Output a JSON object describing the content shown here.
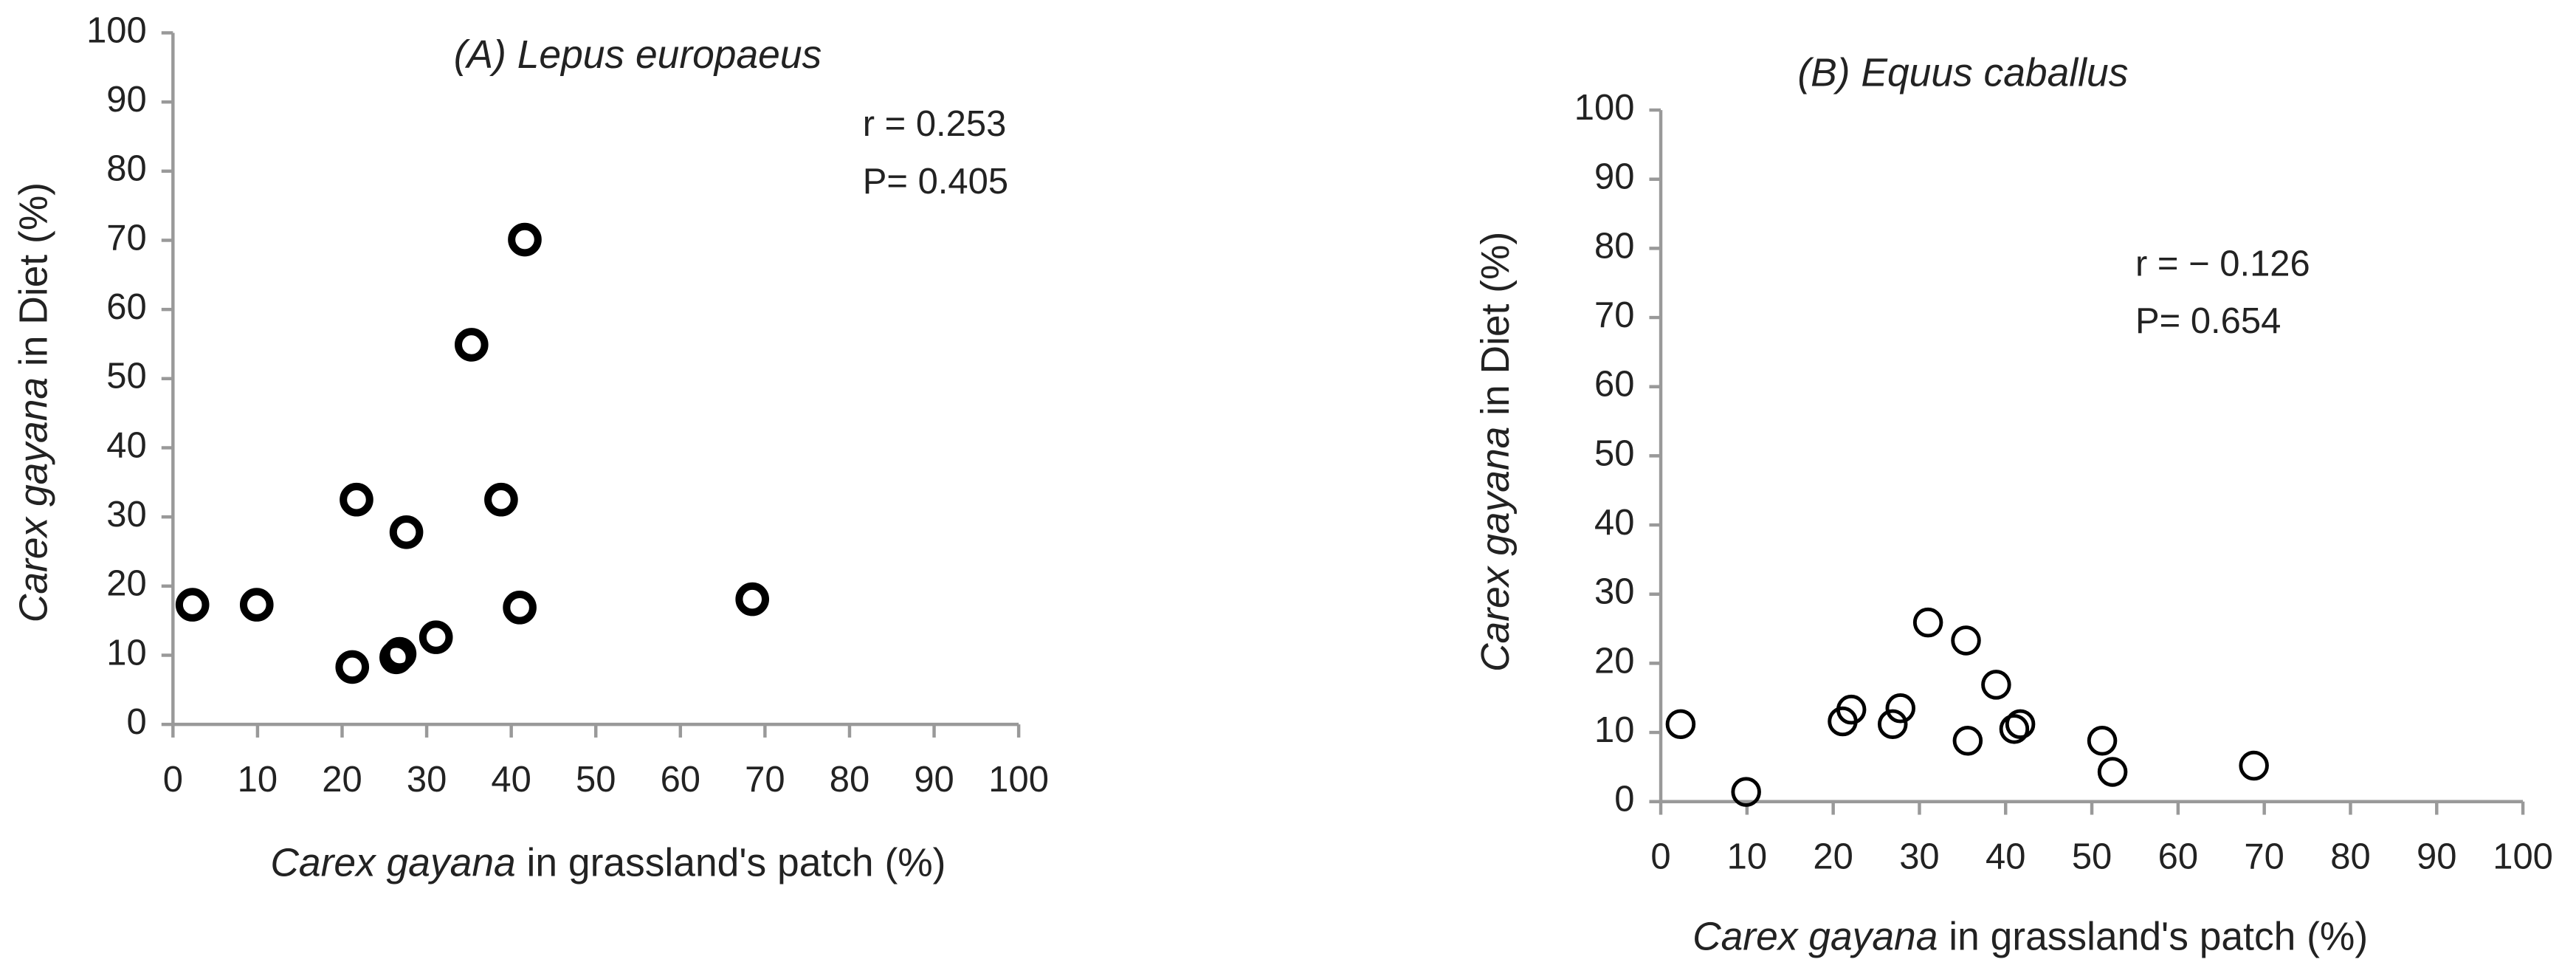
{
  "chart_data": [
    {
      "type": "scatter",
      "title": "(A) Lepus europaeus",
      "xlabel": [
        {
          "text": "Carex gayana",
          "italic": true
        },
        {
          "text": " in  grassland's patch (%)",
          "italic": false
        }
      ],
      "ylabel": [
        {
          "text": "Carex gayana",
          "italic": true
        },
        {
          "text": " in Diet (%)",
          "italic": false
        }
      ],
      "annotations": [
        "r = 0.253",
        "P= 0.405"
      ],
      "xlim": [
        0,
        100
      ],
      "ylim": [
        0,
        100
      ],
      "xticks": [
        0,
        10,
        20,
        30,
        40,
        50,
        60,
        70,
        80,
        90,
        100
      ],
      "yticks": [
        0,
        10,
        20,
        30,
        40,
        50,
        60,
        70,
        80,
        90,
        100
      ],
      "grid": false,
      "marker_color": "#000000",
      "marker_stroke_width": 4.5,
      "x": [
        2.3,
        9.9,
        21.7,
        21.2,
        27.6,
        26.4,
        26.8,
        31.1,
        35.3,
        38.8,
        41.6,
        41.0,
        68.5
      ],
      "y": [
        17.3,
        17.3,
        32.5,
        8.3,
        27.8,
        9.7,
        10.2,
        12.6,
        54.9,
        32.5,
        70.1,
        16.9,
        18.1
      ]
    },
    {
      "type": "scatter",
      "title": "(B) Equus caballus",
      "xlabel": [
        {
          "text": "Carex gayana",
          "italic": true
        },
        {
          "text": " in  grassland's patch (%)",
          "italic": false
        }
      ],
      "ylabel": [
        {
          "text": "Carex gayana",
          "italic": true
        },
        {
          "text": " in Diet (%)",
          "italic": false
        }
      ],
      "annotations": [
        "r = − 0.126",
        "P= 0.654"
      ],
      "xlim": [
        0,
        100
      ],
      "ylim": [
        0,
        100
      ],
      "xticks": [
        0,
        10,
        20,
        30,
        40,
        50,
        60,
        70,
        80,
        90,
        100
      ],
      "yticks": [
        0,
        10,
        20,
        30,
        40,
        50,
        60,
        70,
        80,
        90,
        100
      ],
      "grid": false,
      "marker_color": "#000000",
      "marker_stroke_width": 2.2,
      "x": [
        2.3,
        9.9,
        21.1,
        22.1,
        26.9,
        27.8,
        31.0,
        35.4,
        35.6,
        38.9,
        41.0,
        41.7,
        51.2,
        52.4,
        68.8
      ],
      "y": [
        11.2,
        1.4,
        11.6,
        13.3,
        11.2,
        13.5,
        25.9,
        23.3,
        8.8,
        16.9,
        10.5,
        11.2,
        8.8,
        4.3,
        5.2
      ]
    }
  ]
}
